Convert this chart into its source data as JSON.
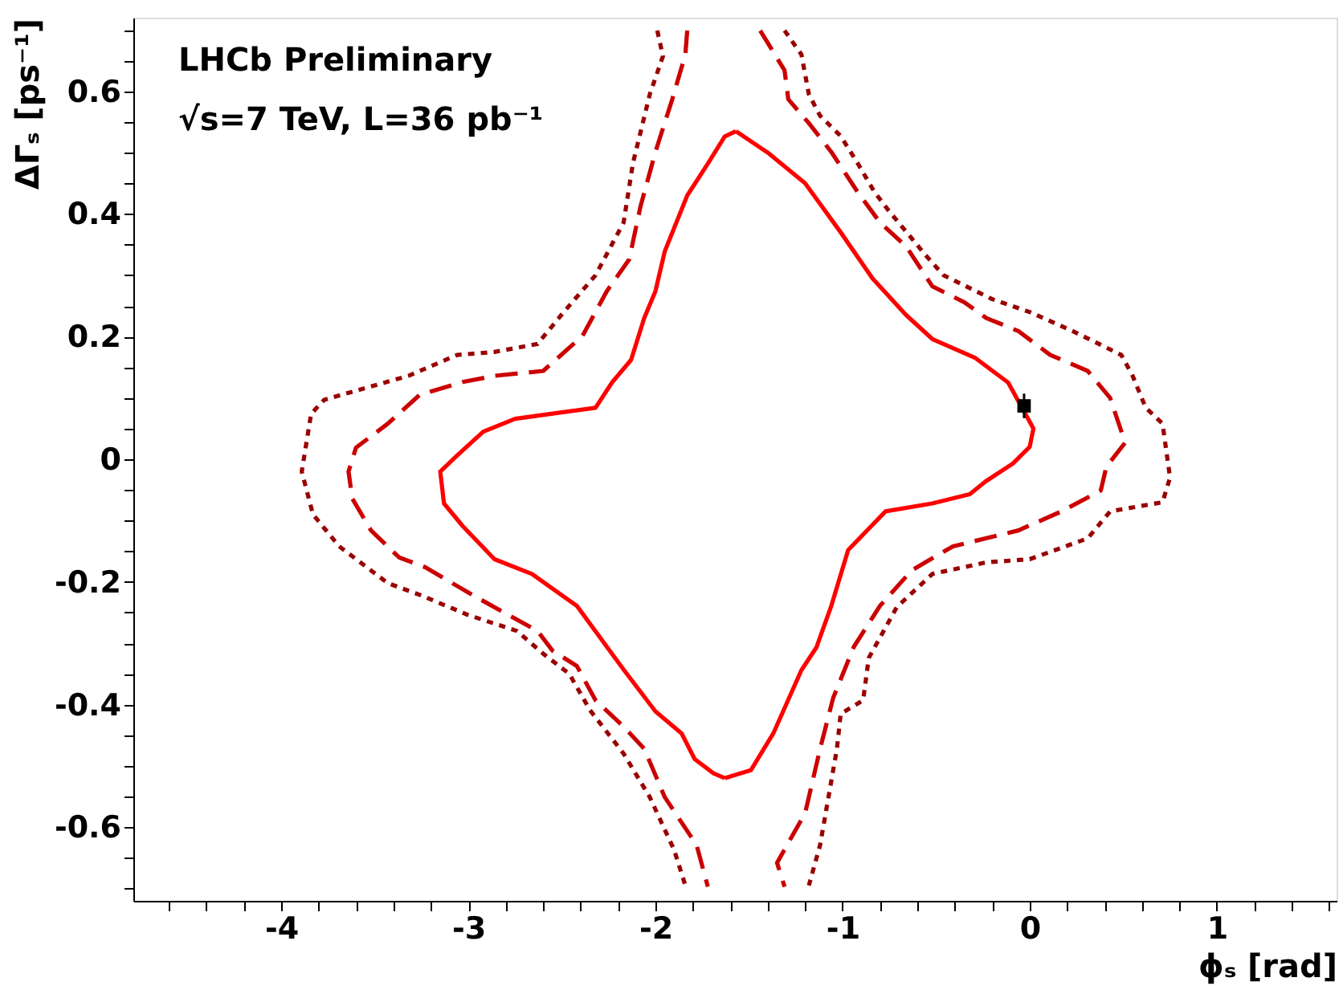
{
  "chart_data": {
    "type": "line",
    "xlabel": "ϕₛ [rad]",
    "ylabel": "ΔΓₛ [ps⁻¹]",
    "annotations": [
      "LHCb Preliminary",
      "√s=7 TeV, L=36 pb⁻¹"
    ],
    "xlim": [
      -4.79,
      1.64
    ],
    "ylim": [
      -0.72,
      0.72
    ],
    "xticks": [
      {
        "value": -4.6,
        "label": null
      },
      {
        "value": -4.4,
        "label": null
      },
      {
        "value": -4.2,
        "label": null
      },
      -4,
      {
        "value": -3.8,
        "label": null
      },
      {
        "value": -3.6,
        "label": null
      },
      {
        "value": -3.4,
        "label": null
      },
      {
        "value": -3.2,
        "label": null
      },
      -3,
      {
        "value": -2.8,
        "label": null
      },
      {
        "value": -2.6,
        "label": null
      },
      {
        "value": -2.4,
        "label": null
      },
      {
        "value": -2.2,
        "label": null
      },
      -2,
      {
        "value": -1.8,
        "label": null
      },
      {
        "value": -1.6,
        "label": null
      },
      {
        "value": -1.4,
        "label": null
      },
      {
        "value": -1.2,
        "label": null
      },
      -1,
      {
        "value": -0.8,
        "label": null
      },
      {
        "value": -0.6,
        "label": null
      },
      {
        "value": -0.4,
        "label": null
      },
      {
        "value": -0.2,
        "label": null
      },
      0,
      {
        "value": 0.2,
        "label": null
      },
      {
        "value": 0.4,
        "label": null
      },
      {
        "value": 0.6,
        "label": null
      },
      {
        "value": 0.8,
        "label": null
      },
      1,
      {
        "value": 1.2,
        "label": null
      },
      {
        "value": 1.4,
        "label": null
      },
      {
        "value": 1.6,
        "label": null
      }
    ],
    "yticks": [
      {
        "value": -0.7,
        "label": null
      },
      {
        "value": -0.65,
        "label": null
      },
      -0.6,
      {
        "value": -0.55,
        "label": null
      },
      {
        "value": -0.5,
        "label": null
      },
      {
        "value": -0.45,
        "label": null
      },
      -0.4,
      {
        "value": -0.35,
        "label": null
      },
      {
        "value": -0.3,
        "label": null
      },
      {
        "value": -0.25,
        "label": null
      },
      -0.2,
      {
        "value": -0.15,
        "label": null
      },
      {
        "value": -0.1,
        "label": null
      },
      {
        "value": -0.05,
        "label": null
      },
      0,
      {
        "value": 0.05,
        "label": null
      },
      {
        "value": 0.1,
        "label": null
      },
      {
        "value": 0.15,
        "label": null
      },
      0.2,
      {
        "value": 0.25,
        "label": null
      },
      {
        "value": 0.3,
        "label": null
      },
      {
        "value": 0.35,
        "label": null
      },
      0.4,
      {
        "value": 0.45,
        "label": null
      },
      {
        "value": 0.5,
        "label": null
      },
      {
        "value": 0.55,
        "label": null
      },
      0.6,
      {
        "value": 0.65,
        "label": null
      },
      {
        "value": 0.7,
        "label": null
      }
    ],
    "grid": false,
    "series": [
      {
        "type": "line",
        "line_style": "solid",
        "color": "#ff0000",
        "x": [
          -1.57,
          -1.4,
          -1.2,
          -1.01,
          -0.84,
          -0.66,
          -0.52,
          -0.29,
          -0.115,
          0.02,
          0.0,
          -0.09,
          -0.235,
          -0.32,
          -0.52,
          -0.77,
          -0.97,
          -1.06,
          -1.14,
          -1.22,
          -1.37,
          -1.49,
          -1.63
        ],
        "values": [
          0.535,
          0.5,
          0.45,
          0.37,
          0.295,
          0.235,
          0.196,
          0.165,
          0.125,
          0.05,
          0.02,
          -0.007,
          -0.036,
          -0.057,
          -0.072,
          -0.085,
          -0.148,
          -0.239,
          -0.307,
          -0.344,
          -0.447,
          -0.507,
          -0.52
        ]
      },
      {
        "type": "line",
        "line_style": "solid",
        "color": "#ff0000",
        "x": [
          -1.63,
          -1.69,
          -1.79,
          -1.86,
          -2.0,
          -2.17,
          -2.42,
          -2.66,
          -2.86,
          -3.03,
          -3.13,
          -3.15,
          -3.06,
          -2.92,
          -2.75,
          -2.51,
          -2.32,
          -2.23,
          -2.13,
          -2.06,
          -2.0,
          -1.95,
          -1.83,
          -1.72,
          -1.63,
          -1.57
        ],
        "values": [
          -0.52,
          -0.512,
          -0.489,
          -0.447,
          -0.411,
          -0.343,
          -0.239,
          -0.187,
          -0.163,
          -0.109,
          -0.072,
          -0.02,
          0.006,
          0.045,
          0.066,
          0.076,
          0.084,
          0.126,
          0.162,
          0.23,
          0.274,
          0.339,
          0.43,
          0.482,
          0.526,
          0.535
        ]
      },
      {
        "type": "line",
        "line_style": "dashed",
        "color": "#cc0000",
        "x": [
          -1.83,
          -1.84,
          -1.91,
          -2.0,
          -2.08,
          -2.14,
          -2.26,
          -2.39,
          -2.6,
          -2.86,
          -3.03,
          -3.26,
          -3.43,
          -3.6,
          -3.64,
          -3.62,
          -3.52,
          -3.37,
          -3.23,
          -2.98,
          -2.63,
          -2.55,
          -2.42,
          -2.32,
          -2.17,
          -2.06,
          -1.95,
          -1.78,
          -1.72
        ],
        "values": [
          0.699,
          0.66,
          0.587,
          0.501,
          0.412,
          0.326,
          0.274,
          0.201,
          0.144,
          0.136,
          0.126,
          0.105,
          0.058,
          0.019,
          -0.02,
          -0.064,
          -0.116,
          -0.16,
          -0.176,
          -0.221,
          -0.28,
          -0.312,
          -0.337,
          -0.393,
          -0.436,
          -0.472,
          -0.551,
          -0.629,
          -0.697
        ]
      },
      {
        "type": "line",
        "line_style": "dashed",
        "color": "#cc0000",
        "x": [
          -1.44,
          -1.31,
          -1.29,
          -1.18,
          -1.06,
          -0.92,
          -0.8,
          -0.66,
          -0.52,
          -0.35,
          -0.23,
          -0.06,
          0.11,
          0.31,
          0.43,
          0.51,
          0.41,
          0.38,
          0.17,
          -0.06,
          -0.41,
          -0.63,
          -0.8,
          -0.94,
          -1.05,
          -1.12,
          -1.2,
          -1.35,
          -1.31
        ],
        "values": [
          0.699,
          0.634,
          0.587,
          0.548,
          0.501,
          0.436,
          0.386,
          0.347,
          0.282,
          0.256,
          0.23,
          0.209,
          0.17,
          0.144,
          0.1,
          0.027,
          -0.012,
          -0.051,
          -0.085,
          -0.116,
          -0.142,
          -0.181,
          -0.239,
          -0.306,
          -0.389,
          -0.472,
          -0.577,
          -0.658,
          -0.697
        ]
      },
      {
        "type": "line",
        "line_style": "dotted",
        "color": "#990000",
        "x": [
          -1.99,
          -1.96,
          -2.03,
          -2.12,
          -2.17,
          -2.32,
          -2.49,
          -2.63,
          -2.86,
          -3.06,
          -3.32,
          -3.77,
          -3.84,
          -3.89,
          -3.83,
          -3.69,
          -3.43,
          -3.26,
          -3.0,
          -2.74,
          -2.6,
          -2.46,
          -2.35,
          -2.17,
          -2.03,
          -1.9,
          -1.84
        ],
        "values": [
          0.699,
          0.657,
          0.595,
          0.483,
          0.386,
          0.3,
          0.24,
          0.188,
          0.175,
          0.17,
          0.136,
          0.097,
          0.074,
          -0.02,
          -0.09,
          -0.142,
          -0.202,
          -0.221,
          -0.254,
          -0.28,
          -0.317,
          -0.35,
          -0.409,
          -0.48,
          -0.551,
          -0.637,
          -0.695
        ]
      },
      {
        "type": "line",
        "line_style": "dotted",
        "color": "#990000",
        "x": [
          -1.31,
          -1.22,
          -1.18,
          -1.12,
          -1.01,
          -0.92,
          -0.83,
          -0.75,
          -0.63,
          -0.56,
          -0.46,
          -0.2,
          0.0,
          0.23,
          0.49,
          0.55,
          0.62,
          0.71,
          0.75,
          0.71,
          0.43,
          0.31,
          0.0,
          -0.23,
          -0.52,
          -0.71,
          -0.86,
          -0.89,
          -1.01,
          -1.03,
          -1.12,
          -1.18
        ],
        "values": [
          0.699,
          0.66,
          0.595,
          0.56,
          0.527,
          0.483,
          0.436,
          0.404,
          0.36,
          0.334,
          0.3,
          0.261,
          0.24,
          0.209,
          0.17,
          0.136,
          0.084,
          0.058,
          -0.03,
          -0.07,
          -0.085,
          -0.129,
          -0.163,
          -0.168,
          -0.187,
          -0.241,
          -0.324,
          -0.393,
          -0.415,
          -0.472,
          -0.629,
          -0.695
        ]
      },
      {
        "type": "scatter",
        "marker": "square",
        "color": "#000000",
        "x": [
          -0.03
        ],
        "values": [
          0.087
        ],
        "errors": [
          0.02
        ]
      }
    ]
  }
}
